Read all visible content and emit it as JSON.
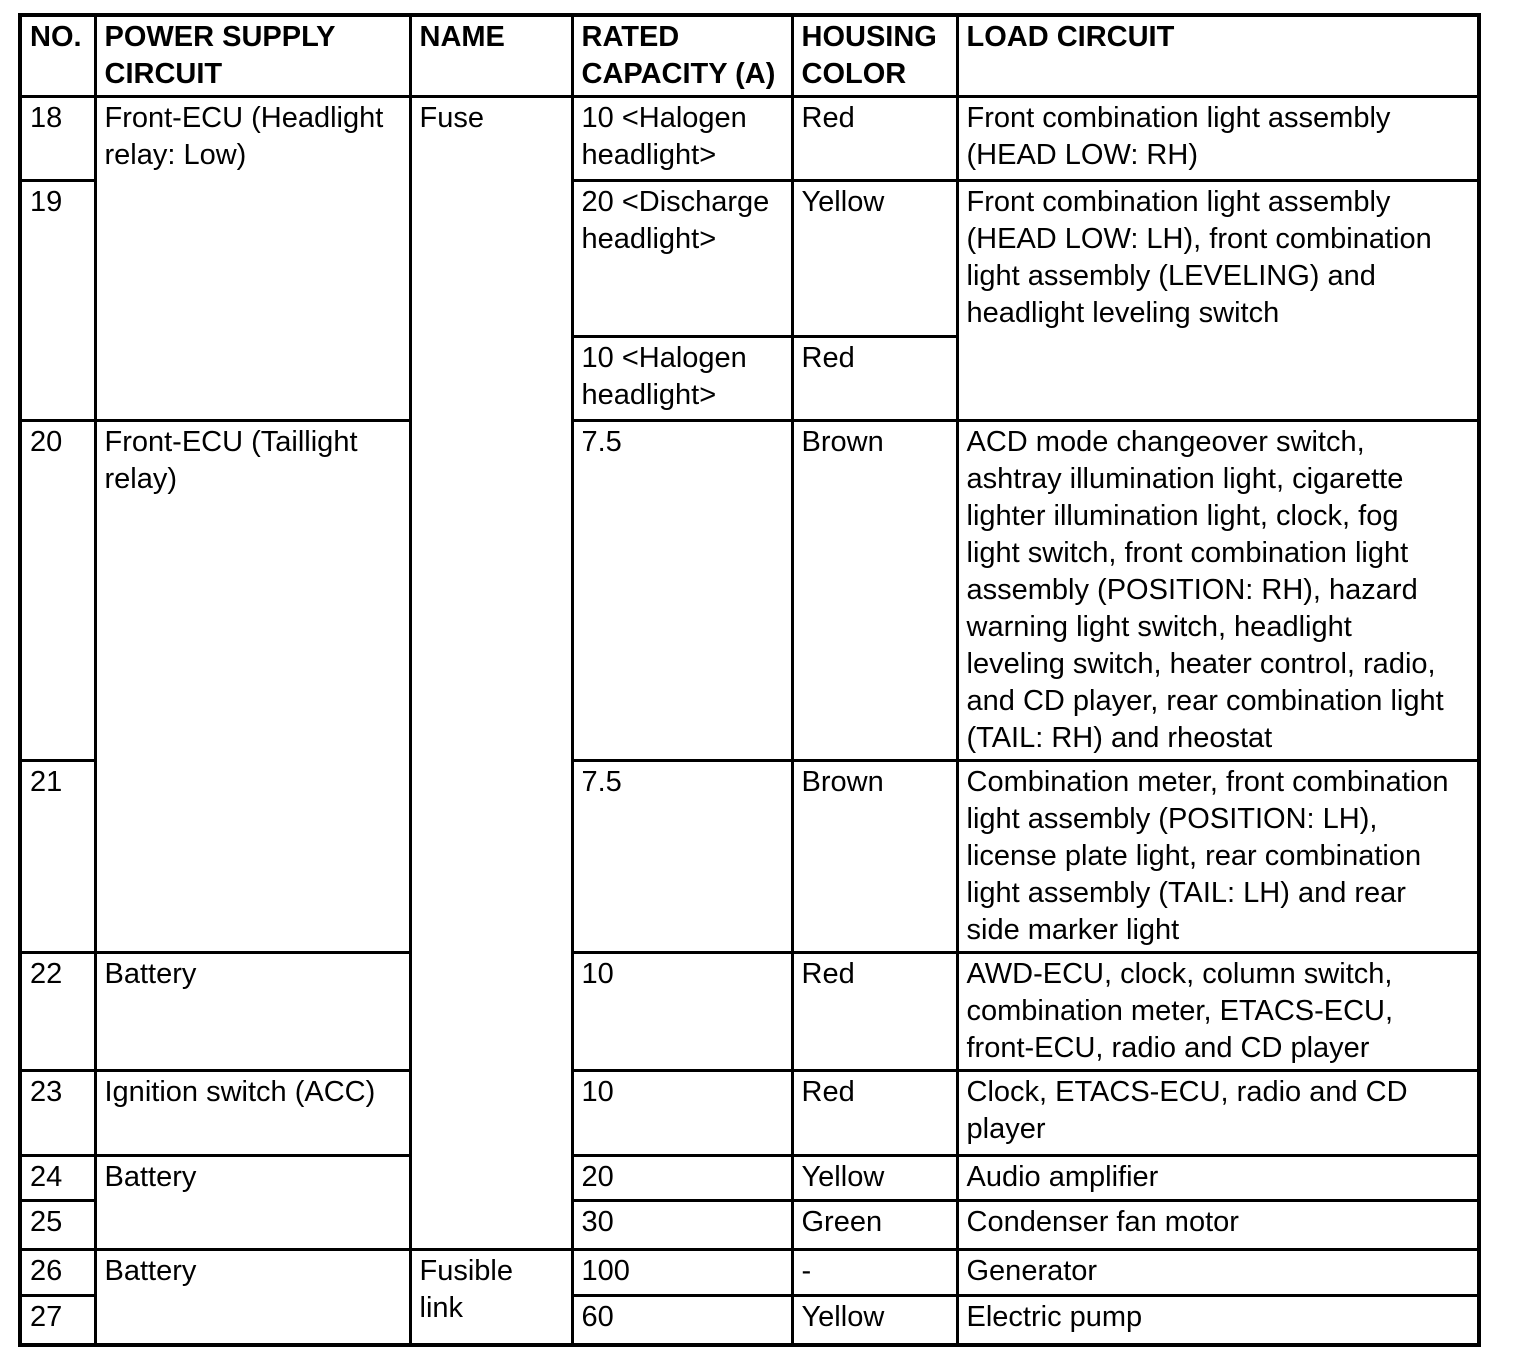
{
  "page": {
    "background_color": "#ffffff",
    "line_color": "#000000",
    "text_color": "#000000"
  },
  "table": {
    "headers": {
      "no": "NO.",
      "power": "POWER SUPPLY CIRCUIT",
      "name": "NAME",
      "capacity": "RATED CAPACITY (A)",
      "color": "HOUSING COLOR",
      "load": "LOAD CIRCUIT"
    },
    "rows": {
      "r18": {
        "no": "18",
        "power": "Front-ECU (Headlight relay: Low)",
        "name": "Fuse",
        "capacity": "10 <Halogen headlight>",
        "color": "Red",
        "load": "Front combination light assembly (HEAD LOW: RH)"
      },
      "r19a": {
        "no": "19",
        "capacity": "20 <Discharge headlight>",
        "color": "Yellow",
        "load": "Front combination light assembly (HEAD LOW: LH), front combination light assembly (LEVELING) and headlight leveling switch"
      },
      "r19b": {
        "capacity": "10 <Halogen headlight>",
        "color": "Red"
      },
      "r20": {
        "no": "20",
        "power": "Front-ECU (Taillight relay)",
        "capacity": "7.5",
        "color": "Brown",
        "load": "ACD mode changeover switch, ashtray illumination light, cigarette lighter illumination light, clock, fog light switch, front combination light assembly (POSITION: RH), hazard warning light switch, headlight leveling switch, heater control, radio, and CD player, rear combination light (TAIL: RH) and rheostat"
      },
      "r21": {
        "no": "21",
        "capacity": "7.5",
        "color": "Brown",
        "load": "Combination meter, front combination light assembly (POSITION: LH), license plate light, rear combination light assembly (TAIL: LH) and rear side marker light"
      },
      "r22": {
        "no": "22",
        "power": "Battery",
        "capacity": "10",
        "color": "Red",
        "load": "AWD-ECU, clock, column switch, combination meter, ETACS-ECU, front-ECU, radio and CD player"
      },
      "r23": {
        "no": "23",
        "power": "Ignition switch (ACC)",
        "capacity": "10",
        "color": "Red",
        "load": "Clock, ETACS-ECU, radio and CD player"
      },
      "r24": {
        "no": "24",
        "power": "Battery",
        "capacity": "20",
        "color": "Yellow",
        "load": "Audio amplifier"
      },
      "r25": {
        "no": "25",
        "capacity": "30",
        "color": "Green",
        "load": "Condenser fan motor"
      },
      "r26": {
        "no": "26",
        "power": "Battery",
        "name": "Fusible link",
        "capacity": "100",
        "color": "-",
        "load": "Generator"
      },
      "r27": {
        "no": "27",
        "capacity": "60",
        "color": "Yellow",
        "load": "Electric pump"
      }
    }
  }
}
